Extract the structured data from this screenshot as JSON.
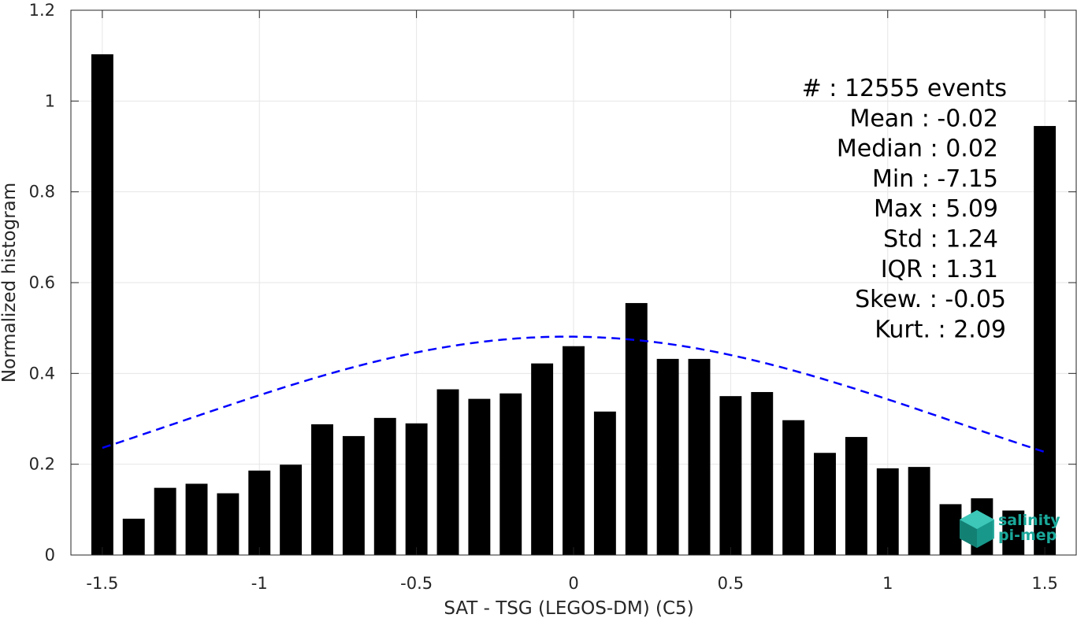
{
  "chart_data": {
    "type": "bar",
    "xlabel": "SAT - TSG (LEGOS-DM) (C5)",
    "ylabel": "Normalized histogram",
    "xlim": [
      -1.6,
      1.6
    ],
    "ylim": [
      0,
      1.2
    ],
    "xticks": [
      -1.5,
      -1,
      -0.5,
      0,
      0.5,
      1,
      1.5
    ],
    "xtick_labels": [
      "-1.5",
      "-1",
      "-0.5",
      "0",
      "0.5",
      "1",
      "1.5"
    ],
    "yticks": [
      0,
      0.2,
      0.4,
      0.6,
      0.8,
      1,
      1.2
    ],
    "ytick_labels": [
      "0",
      "0.2",
      "0.4",
      "0.6",
      "0.8",
      "1",
      "1.2"
    ],
    "grid": true,
    "bar_width": 0.07,
    "x": [
      -1.5,
      -1.4,
      -1.3,
      -1.2,
      -1.1,
      -1.0,
      -0.9,
      -0.8,
      -0.7,
      -0.6,
      -0.5,
      -0.4,
      -0.3,
      -0.2,
      -0.1,
      0.0,
      0.1,
      0.2,
      0.3,
      0.4,
      0.5,
      0.6,
      0.7,
      0.8,
      0.9,
      1.0,
      1.1,
      1.2,
      1.3,
      1.4,
      1.5
    ],
    "values": [
      1.103,
      0.08,
      0.148,
      0.157,
      0.136,
      0.186,
      0.199,
      0.288,
      0.262,
      0.302,
      0.29,
      0.365,
      0.344,
      0.356,
      0.422,
      0.46,
      0.316,
      0.555,
      0.432,
      0.432,
      0.35,
      0.359,
      0.297,
      0.225,
      0.26,
      0.191,
      0.194,
      0.112,
      0.125,
      0.098,
      0.945
    ],
    "fit_curve": {
      "style": "dashed",
      "color": "#0000ff",
      "mean": -0.02,
      "std": 1.24,
      "peak": 0.481,
      "x_range": [
        -1.5,
        1.5
      ]
    },
    "bar_color": "#000000"
  },
  "stats": [
    "#  : 12555 events",
    "Mean : -0.02",
    "Median : 0.02",
    "Min : -7.15",
    "Max : 5.09",
    "Std : 1.24",
    "IQR : 1.31",
    "Skew. : -0.05",
    "Kurt. : 2.09"
  ],
  "logo": {
    "line1": "salinity",
    "line2": "pi-mep",
    "color": "#1aa89a"
  }
}
